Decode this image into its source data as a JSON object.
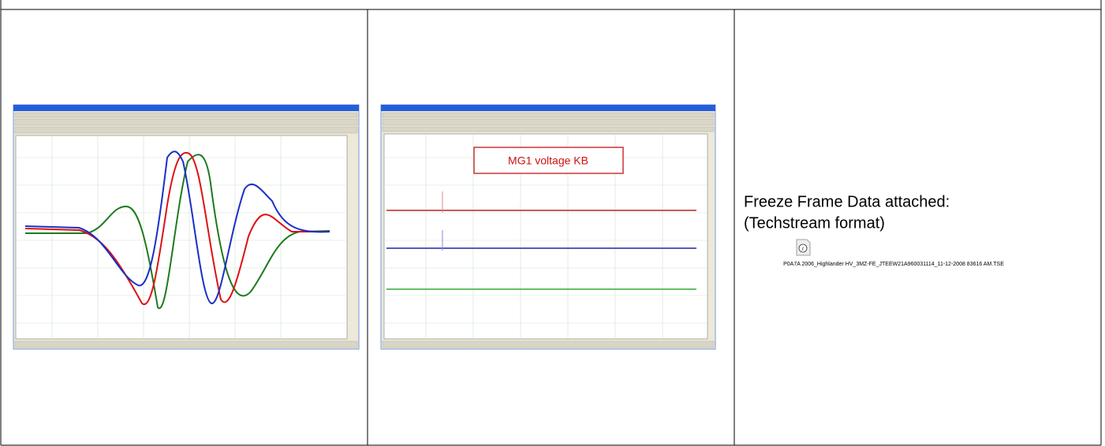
{
  "screenshot_2": {
    "label": "MG1 voltage KB"
  },
  "attachment": {
    "heading": "Freeze Frame Data attached:",
    "format": "(Techstream format)",
    "file_name": "P0A7A 2006_Highlander HV_3MZ-FE_JTEEW21A960031114_11-12-2008 83616 AM.TSE"
  }
}
